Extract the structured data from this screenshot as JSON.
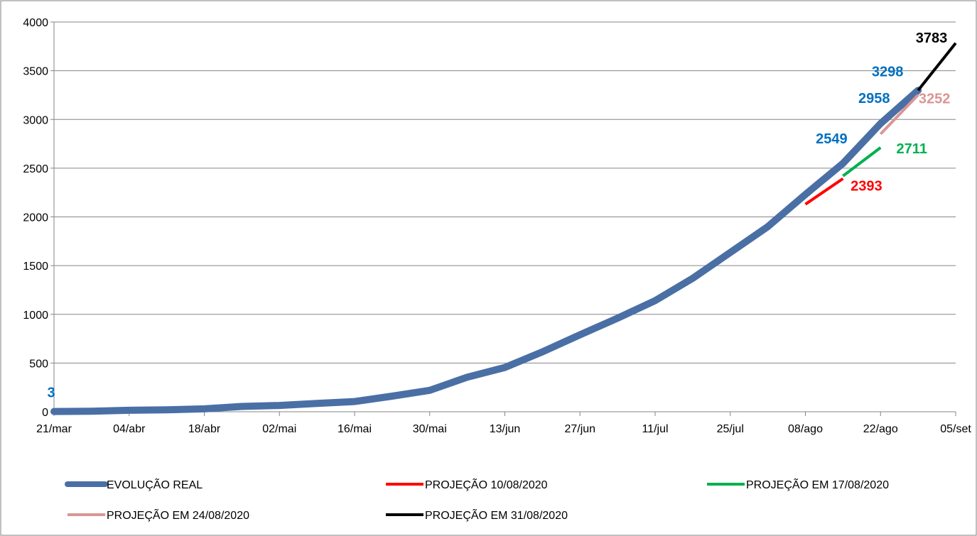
{
  "chart_data": {
    "type": "line",
    "x_ticks": [
      "21/mar",
      "04/abr",
      "18/abr",
      "02/mai",
      "16/mai",
      "30/mai",
      "13/jun",
      "27/jun",
      "11/jul",
      "25/jul",
      "08/ago",
      "22/ago",
      "05/set"
    ],
    "ylim": [
      0,
      4000
    ],
    "y_ticks": [
      "0",
      "500",
      "1000",
      "1500",
      "2000",
      "2500",
      "3000",
      "3500",
      "4000"
    ],
    "grid": "horizontal",
    "legend_position": "bottom",
    "series": [
      {
        "name": "EVOLUÇÃO REAL",
        "color": "#4a6fa5",
        "x": [
          "2020-03-21",
          "2020-03-28",
          "2020-04-04",
          "2020-04-11",
          "2020-04-18",
          "2020-04-25",
          "2020-05-02",
          "2020-05-09",
          "2020-05-16",
          "2020-05-23",
          "2020-05-30",
          "2020-06-06",
          "2020-06-13",
          "2020-06-20",
          "2020-06-27",
          "2020-07-04",
          "2020-07-11",
          "2020-07-18",
          "2020-07-25",
          "2020-08-01",
          "2020-08-08",
          "2020-08-15",
          "2020-08-22",
          "2020-08-29"
        ],
        "y": [
          3,
          5,
          15,
          20,
          30,
          55,
          65,
          85,
          105,
          160,
          220,
          355,
          455,
          615,
          790,
          960,
          1140,
          1370,
          1635,
          1900,
          2230,
          2549,
          2958,
          3298
        ]
      },
      {
        "name": "PROJEÇÃO 10/08/2020",
        "color": "#ff0000",
        "x": [
          "2020-08-08",
          "2020-08-15"
        ],
        "y": [
          2130,
          2393
        ]
      },
      {
        "name": "PROJEÇÃO EM 17/08/2020",
        "color": "#00b050",
        "x": [
          "2020-08-15",
          "2020-08-22"
        ],
        "y": [
          2420,
          2711
        ]
      },
      {
        "name": "PROJEÇÃO EM 24/08/2020",
        "color": "#d99694",
        "x": [
          "2020-08-22",
          "2020-08-29"
        ],
        "y": [
          2850,
          3252
        ]
      },
      {
        "name": "PROJEÇÃO EM 31/08/2020",
        "color": "#000000",
        "x": [
          "2020-08-29",
          "2020-09-05"
        ],
        "y": [
          3298,
          3783
        ]
      }
    ],
    "annotations": [
      {
        "text": "3",
        "x": "2020-03-21",
        "y": 3,
        "color": "#0070c0"
      },
      {
        "text": "2549",
        "x": "2020-08-15",
        "y": 2549,
        "color": "#0070c0"
      },
      {
        "text": "2958",
        "x": "2020-08-22",
        "y": 2958,
        "color": "#0070c0"
      },
      {
        "text": "3298",
        "x": "2020-08-29",
        "y": 3298,
        "color": "#0070c0"
      },
      {
        "text": "2393",
        "x": "2020-08-15",
        "y": 2393,
        "color": "#ff0000"
      },
      {
        "text": "2711",
        "x": "2020-08-22",
        "y": 2711,
        "color": "#00b050"
      },
      {
        "text": "3252",
        "x": "2020-08-29",
        "y": 3252,
        "color": "#d99694"
      },
      {
        "text": "3783",
        "x": "2020-09-05",
        "y": 3783,
        "color": "#000000"
      }
    ]
  }
}
